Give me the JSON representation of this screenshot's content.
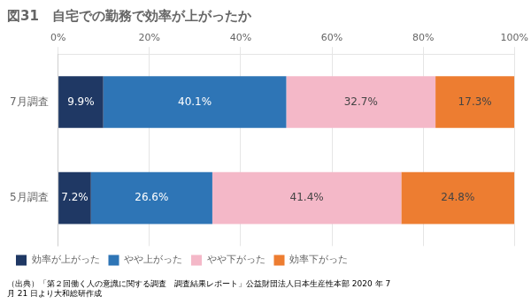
{
  "chart_data": {
    "type": "bar",
    "orientation": "horizontal",
    "stacked": true,
    "title": "図31　自宅での勤務で効率が上がったか",
    "categories": [
      "7月調査",
      "5月調査"
    ],
    "series": [
      {
        "name": "効率が上がった",
        "color": "#1f3864",
        "values": [
          9.9,
          7.2
        ],
        "value_labels": [
          "9.9%",
          "7.2%"
        ]
      },
      {
        "name": "やや上がった",
        "color": "#2e75b6",
        "values": [
          40.1,
          26.6
        ],
        "value_labels": [
          "40.1%",
          "26.6%"
        ]
      },
      {
        "name": "やや下がった",
        "color": "#f4b8c8",
        "values": [
          32.7,
          41.4
        ],
        "value_labels": [
          "32.7%",
          "41.4%"
        ]
      },
      {
        "name": "効率下がった",
        "color": "#ed7d31",
        "values": [
          17.3,
          24.8
        ],
        "value_labels": [
          "17.3%",
          "24.8%"
        ]
      }
    ],
    "xlim": [
      0,
      100
    ],
    "xticks": [
      {
        "value": 0,
        "label": "0%"
      },
      {
        "value": 20,
        "label": "20%"
      },
      {
        "value": 40,
        "label": "40%"
      },
      {
        "value": 60,
        "label": "60%"
      },
      {
        "value": 80,
        "label": "80%"
      },
      {
        "value": 100,
        "label": "100%"
      }
    ],
    "grid": true,
    "legend": "bottom",
    "data_labels": true,
    "annotations": [
      "（出典）「第２回働く人の意識に関する調査　調査結果レポート」公益財団法人日本生産性本部 2020 年 7",
      "月 21 日より大和総研作成"
    ]
  }
}
